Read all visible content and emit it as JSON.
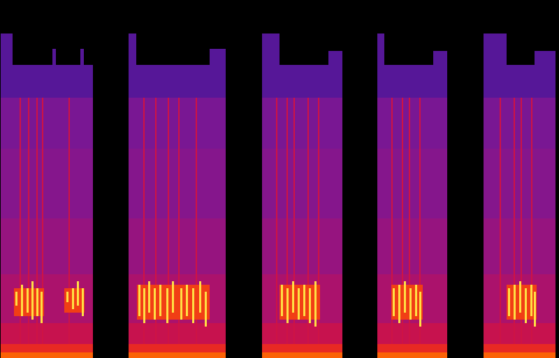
{
  "chart_data": {
    "type": "heatmap",
    "tick_labels": false,
    "xlim": [
      0,
      800
    ],
    "ylim": [
      0,
      513
    ],
    "color_range": [
      0,
      1
    ],
    "cells": [
      {
        "x1": 0,
        "x2": 133,
        "y1": 373,
        "y2": 420,
        "value": 0.28
      },
      {
        "x1": 0,
        "x2": 18,
        "y1": 420,
        "y2": 465,
        "value": 0.28
      },
      {
        "x1": 75,
        "x2": 80,
        "y1": 420,
        "y2": 443,
        "value": 0.28
      },
      {
        "x1": 115,
        "x2": 120,
        "y1": 420,
        "y2": 443,
        "value": 0.28
      },
      {
        "x1": 0,
        "x2": 133,
        "y1": 300,
        "y2": 373,
        "value": 0.37
      },
      {
        "x1": 0,
        "x2": 133,
        "y1": 200,
        "y2": 300,
        "value": 0.4
      },
      {
        "x1": 0,
        "x2": 133,
        "y1": 120,
        "y2": 200,
        "value": 0.44
      },
      {
        "x1": 0,
        "x2": 133,
        "y1": 50,
        "y2": 120,
        "value": 0.49
      },
      {
        "x1": 0,
        "x2": 133,
        "y1": 20,
        "y2": 50,
        "value": 0.56
      },
      {
        "x1": 0,
        "x2": 133,
        "y1": 8,
        "y2": 20,
        "value": 0.66
      },
      {
        "x1": 0,
        "x2": 133,
        "y1": 0,
        "y2": 8,
        "value": 0.76
      },
      {
        "x1": 28,
        "x2": 30,
        "y1": 20,
        "y2": 373,
        "value": 0.58
      },
      {
        "x1": 40,
        "x2": 42,
        "y1": 20,
        "y2": 373,
        "value": 0.58
      },
      {
        "x1": 52,
        "x2": 54,
        "y1": 20,
        "y2": 373,
        "value": 0.58
      },
      {
        "x1": 60,
        "x2": 62,
        "y1": 20,
        "y2": 373,
        "value": 0.58
      },
      {
        "x1": 98,
        "x2": 100,
        "y1": 20,
        "y2": 373,
        "value": 0.58
      },
      {
        "x1": 20,
        "x2": 63,
        "y1": 60,
        "y2": 100,
        "value": 0.7
      },
      {
        "x1": 92,
        "x2": 121,
        "y1": 65,
        "y2": 100,
        "value": 0.7
      },
      {
        "x1": 22,
        "x2": 25,
        "y1": 75,
        "y2": 95,
        "value": 0.95
      },
      {
        "x1": 30,
        "x2": 33,
        "y1": 60,
        "y2": 105,
        "value": 0.95
      },
      {
        "x1": 38,
        "x2": 41,
        "y1": 65,
        "y2": 100,
        "value": 0.95
      },
      {
        "x1": 45,
        "x2": 48,
        "y1": 55,
        "y2": 110,
        "value": 0.95
      },
      {
        "x1": 52,
        "x2": 55,
        "y1": 60,
        "y2": 100,
        "value": 0.95
      },
      {
        "x1": 58,
        "x2": 61,
        "y1": 50,
        "y2": 95,
        "value": 0.95
      },
      {
        "x1": 95,
        "x2": 98,
        "y1": 80,
        "y2": 95,
        "value": 0.95
      },
      {
        "x1": 103,
        "x2": 106,
        "y1": 70,
        "y2": 100,
        "value": 0.95
      },
      {
        "x1": 110,
        "x2": 113,
        "y1": 75,
        "y2": 110,
        "value": 0.95
      },
      {
        "x1": 117,
        "x2": 120,
        "y1": 60,
        "y2": 100,
        "value": 0.95
      },
      {
        "x1": 184,
        "x2": 323,
        "y1": 373,
        "y2": 420,
        "value": 0.28
      },
      {
        "x1": 184,
        "x2": 195,
        "y1": 420,
        "y2": 465,
        "value": 0.28
      },
      {
        "x1": 300,
        "x2": 323,
        "y1": 420,
        "y2": 443,
        "value": 0.28
      },
      {
        "x1": 184,
        "x2": 323,
        "y1": 300,
        "y2": 373,
        "value": 0.37
      },
      {
        "x1": 184,
        "x2": 323,
        "y1": 200,
        "y2": 300,
        "value": 0.4
      },
      {
        "x1": 184,
        "x2": 323,
        "y1": 120,
        "y2": 200,
        "value": 0.44
      },
      {
        "x1": 184,
        "x2": 323,
        "y1": 50,
        "y2": 120,
        "value": 0.49
      },
      {
        "x1": 184,
        "x2": 323,
        "y1": 20,
        "y2": 50,
        "value": 0.56
      },
      {
        "x1": 184,
        "x2": 323,
        "y1": 8,
        "y2": 20,
        "value": 0.66
      },
      {
        "x1": 184,
        "x2": 323,
        "y1": 0,
        "y2": 8,
        "value": 0.76
      },
      {
        "x1": 205,
        "x2": 207,
        "y1": 20,
        "y2": 373,
        "value": 0.58
      },
      {
        "x1": 222,
        "x2": 224,
        "y1": 20,
        "y2": 373,
        "value": 0.58
      },
      {
        "x1": 240,
        "x2": 242,
        "y1": 20,
        "y2": 373,
        "value": 0.58
      },
      {
        "x1": 255,
        "x2": 257,
        "y1": 20,
        "y2": 373,
        "value": 0.58
      },
      {
        "x1": 280,
        "x2": 282,
        "y1": 20,
        "y2": 373,
        "value": 0.58
      },
      {
        "x1": 196,
        "x2": 300,
        "y1": 55,
        "y2": 105,
        "value": 0.7
      },
      {
        "x1": 198,
        "x2": 201,
        "y1": 60,
        "y2": 105,
        "value": 0.95
      },
      {
        "x1": 205,
        "x2": 208,
        "y1": 50,
        "y2": 100,
        "value": 0.95
      },
      {
        "x1": 212,
        "x2": 215,
        "y1": 65,
        "y2": 110,
        "value": 0.95
      },
      {
        "x1": 220,
        "x2": 223,
        "y1": 55,
        "y2": 100,
        "value": 0.95
      },
      {
        "x1": 228,
        "x2": 231,
        "y1": 60,
        "y2": 105,
        "value": 0.95
      },
      {
        "x1": 238,
        "x2": 241,
        "y1": 50,
        "y2": 100,
        "value": 0.95
      },
      {
        "x1": 246,
        "x2": 249,
        "y1": 65,
        "y2": 110,
        "value": 0.95
      },
      {
        "x1": 258,
        "x2": 261,
        "y1": 55,
        "y2": 100,
        "value": 0.95
      },
      {
        "x1": 266,
        "x2": 269,
        "y1": 60,
        "y2": 105,
        "value": 0.95
      },
      {
        "x1": 275,
        "x2": 278,
        "y1": 50,
        "y2": 100,
        "value": 0.95
      },
      {
        "x1": 285,
        "x2": 288,
        "y1": 65,
        "y2": 110,
        "value": 0.95
      },
      {
        "x1": 293,
        "x2": 296,
        "y1": 45,
        "y2": 95,
        "value": 0.95
      },
      {
        "x1": 375,
        "x2": 490,
        "y1": 373,
        "y2": 420,
        "value": 0.28
      },
      {
        "x1": 375,
        "x2": 400,
        "y1": 420,
        "y2": 465,
        "value": 0.28
      },
      {
        "x1": 470,
        "x2": 490,
        "y1": 420,
        "y2": 440,
        "value": 0.28
      },
      {
        "x1": 375,
        "x2": 490,
        "y1": 300,
        "y2": 373,
        "value": 0.37
      },
      {
        "x1": 375,
        "x2": 490,
        "y1": 200,
        "y2": 300,
        "value": 0.4
      },
      {
        "x1": 375,
        "x2": 490,
        "y1": 120,
        "y2": 200,
        "value": 0.44
      },
      {
        "x1": 375,
        "x2": 490,
        "y1": 50,
        "y2": 120,
        "value": 0.49
      },
      {
        "x1": 375,
        "x2": 490,
        "y1": 20,
        "y2": 50,
        "value": 0.56
      },
      {
        "x1": 375,
        "x2": 490,
        "y1": 8,
        "y2": 20,
        "value": 0.66
      },
      {
        "x1": 375,
        "x2": 490,
        "y1": 0,
        "y2": 8,
        "value": 0.76
      },
      {
        "x1": 395,
        "x2": 397,
        "y1": 20,
        "y2": 373,
        "value": 0.58
      },
      {
        "x1": 410,
        "x2": 412,
        "y1": 20,
        "y2": 373,
        "value": 0.58
      },
      {
        "x1": 420,
        "x2": 422,
        "y1": 20,
        "y2": 373,
        "value": 0.58
      },
      {
        "x1": 440,
        "x2": 442,
        "y1": 20,
        "y2": 373,
        "value": 0.58
      },
      {
        "x1": 455,
        "x2": 457,
        "y1": 20,
        "y2": 373,
        "value": 0.58
      },
      {
        "x1": 400,
        "x2": 458,
        "y1": 55,
        "y2": 105,
        "value": 0.7
      },
      {
        "x1": 402,
        "x2": 405,
        "y1": 60,
        "y2": 105,
        "value": 0.95
      },
      {
        "x1": 410,
        "x2": 413,
        "y1": 50,
        "y2": 100,
        "value": 0.95
      },
      {
        "x1": 418,
        "x2": 421,
        "y1": 65,
        "y2": 110,
        "value": 0.95
      },
      {
        "x1": 426,
        "x2": 429,
        "y1": 55,
        "y2": 100,
        "value": 0.95
      },
      {
        "x1": 434,
        "x2": 437,
        "y1": 60,
        "y2": 105,
        "value": 0.95
      },
      {
        "x1": 442,
        "x2": 445,
        "y1": 50,
        "y2": 100,
        "value": 0.95
      },
      {
        "x1": 450,
        "x2": 453,
        "y1": 45,
        "y2": 110,
        "value": 0.95
      },
      {
        "x1": 540,
        "x2": 640,
        "y1": 373,
        "y2": 420,
        "value": 0.28
      },
      {
        "x1": 540,
        "x2": 550,
        "y1": 420,
        "y2": 465,
        "value": 0.28
      },
      {
        "x1": 620,
        "x2": 640,
        "y1": 420,
        "y2": 440,
        "value": 0.28
      },
      {
        "x1": 540,
        "x2": 640,
        "y1": 300,
        "y2": 373,
        "value": 0.37
      },
      {
        "x1": 540,
        "x2": 640,
        "y1": 200,
        "y2": 300,
        "value": 0.4
      },
      {
        "x1": 540,
        "x2": 640,
        "y1": 120,
        "y2": 200,
        "value": 0.44
      },
      {
        "x1": 540,
        "x2": 640,
        "y1": 50,
        "y2": 120,
        "value": 0.49
      },
      {
        "x1": 540,
        "x2": 640,
        "y1": 20,
        "y2": 50,
        "value": 0.56
      },
      {
        "x1": 540,
        "x2": 640,
        "y1": 8,
        "y2": 20,
        "value": 0.66
      },
      {
        "x1": 540,
        "x2": 640,
        "y1": 0,
        "y2": 8,
        "value": 0.76
      },
      {
        "x1": 560,
        "x2": 562,
        "y1": 20,
        "y2": 373,
        "value": 0.58
      },
      {
        "x1": 575,
        "x2": 577,
        "y1": 20,
        "y2": 373,
        "value": 0.58
      },
      {
        "x1": 585,
        "x2": 587,
        "y1": 20,
        "y2": 373,
        "value": 0.58
      },
      {
        "x1": 600,
        "x2": 602,
        "y1": 20,
        "y2": 373,
        "value": 0.58
      },
      {
        "x1": 560,
        "x2": 605,
        "y1": 55,
        "y2": 105,
        "value": 0.7
      },
      {
        "x1": 562,
        "x2": 565,
        "y1": 60,
        "y2": 100,
        "value": 0.95
      },
      {
        "x1": 570,
        "x2": 573,
        "y1": 50,
        "y2": 105,
        "value": 0.95
      },
      {
        "x1": 578,
        "x2": 581,
        "y1": 65,
        "y2": 110,
        "value": 0.95
      },
      {
        "x1": 586,
        "x2": 589,
        "y1": 55,
        "y2": 100,
        "value": 0.95
      },
      {
        "x1": 594,
        "x2": 597,
        "y1": 60,
        "y2": 105,
        "value": 0.95
      },
      {
        "x1": 600,
        "x2": 603,
        "y1": 45,
        "y2": 95,
        "value": 0.95
      },
      {
        "x1": 692,
        "x2": 795,
        "y1": 373,
        "y2": 420,
        "value": 0.28
      },
      {
        "x1": 692,
        "x2": 725,
        "y1": 420,
        "y2": 465,
        "value": 0.28
      },
      {
        "x1": 765,
        "x2": 795,
        "y1": 420,
        "y2": 440,
        "value": 0.28
      },
      {
        "x1": 692,
        "x2": 795,
        "y1": 300,
        "y2": 373,
        "value": 0.37
      },
      {
        "x1": 692,
        "x2": 795,
        "y1": 200,
        "y2": 300,
        "value": 0.4
      },
      {
        "x1": 692,
        "x2": 795,
        "y1": 120,
        "y2": 200,
        "value": 0.44
      },
      {
        "x1": 692,
        "x2": 795,
        "y1": 50,
        "y2": 120,
        "value": 0.49
      },
      {
        "x1": 692,
        "x2": 795,
        "y1": 20,
        "y2": 50,
        "value": 0.56
      },
      {
        "x1": 692,
        "x2": 795,
        "y1": 8,
        "y2": 20,
        "value": 0.66
      },
      {
        "x1": 692,
        "x2": 795,
        "y1": 0,
        "y2": 8,
        "value": 0.76
      },
      {
        "x1": 715,
        "x2": 717,
        "y1": 20,
        "y2": 373,
        "value": 0.58
      },
      {
        "x1": 735,
        "x2": 737,
        "y1": 20,
        "y2": 373,
        "value": 0.58
      },
      {
        "x1": 745,
        "x2": 747,
        "y1": 20,
        "y2": 373,
        "value": 0.58
      },
      {
        "x1": 760,
        "x2": 762,
        "y1": 20,
        "y2": 373,
        "value": 0.58
      },
      {
        "x1": 725,
        "x2": 768,
        "y1": 55,
        "y2": 105,
        "value": 0.7
      },
      {
        "x1": 727,
        "x2": 730,
        "y1": 60,
        "y2": 100,
        "value": 0.95
      },
      {
        "x1": 735,
        "x2": 738,
        "y1": 55,
        "y2": 105,
        "value": 0.95
      },
      {
        "x1": 743,
        "x2": 746,
        "y1": 65,
        "y2": 110,
        "value": 0.95
      },
      {
        "x1": 751,
        "x2": 754,
        "y1": 50,
        "y2": 100,
        "value": 0.95
      },
      {
        "x1": 759,
        "x2": 762,
        "y1": 60,
        "y2": 105,
        "value": 0.95
      },
      {
        "x1": 764,
        "x2": 767,
        "y1": 45,
        "y2": 95,
        "value": 0.95
      }
    ]
  }
}
